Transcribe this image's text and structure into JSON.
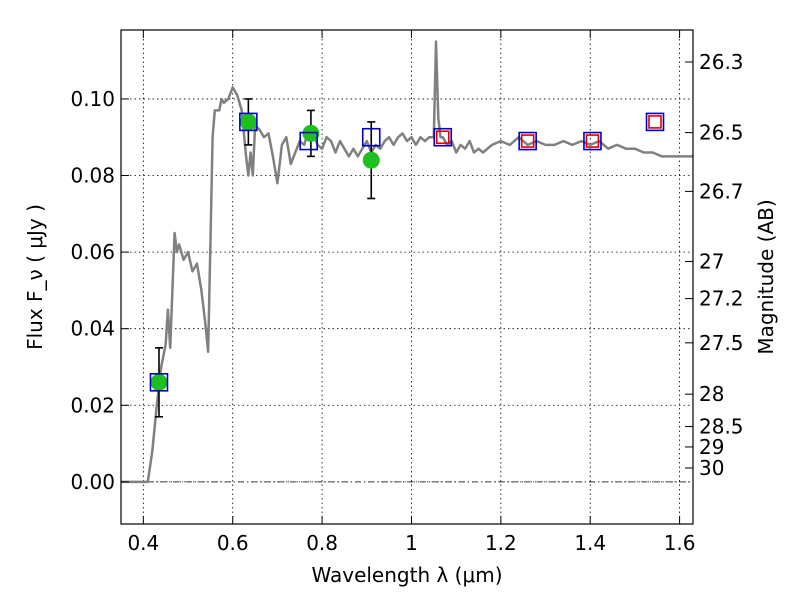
{
  "chart_data": {
    "type": "scatter",
    "xlabel": "Wavelength  λ (μm)",
    "ylabel": "Flux  F_ν  ( μJy )",
    "y2label": "Magnitude (AB)",
    "xlim": [
      0.35,
      1.63
    ],
    "ylim": [
      -0.011,
      0.118
    ],
    "grid": true,
    "x_ticks": [
      0.4,
      0.6,
      0.8,
      1,
      1.2,
      1.4,
      1.6
    ],
    "x_tick_labels": [
      "0.4",
      "0.6",
      "0.8",
      "1",
      "1.2",
      "1.4",
      "1.6"
    ],
    "y_ticks": [
      0.0,
      0.02,
      0.04,
      0.06,
      0.08,
      0.1
    ],
    "y_tick_labels": [
      "0.00",
      "0.02",
      "0.04",
      "0.06",
      "0.08",
      "0.10"
    ],
    "y2_ticks": [
      {
        "mag": 26.3,
        "label": "26.3"
      },
      {
        "mag": 26.5,
        "label": "26.5"
      },
      {
        "mag": 26.7,
        "label": "26.7"
      },
      {
        "mag": 27,
        "label": "27"
      },
      {
        "mag": 27.2,
        "label": "27.2"
      },
      {
        "mag": 27.5,
        "label": "27.5"
      },
      {
        "mag": 28,
        "label": "28"
      },
      {
        "mag": 28.5,
        "label": "28.5"
      },
      {
        "mag": 29,
        "label": "29"
      },
      {
        "mag": 30,
        "label": "30"
      }
    ],
    "series": [
      {
        "kind": "line",
        "color": "#808080",
        "x": [
          0.35,
          0.4,
          0.41,
          0.42,
          0.43,
          0.44,
          0.445,
          0.45,
          0.455,
          0.46,
          0.465,
          0.47,
          0.475,
          0.48,
          0.49,
          0.5,
          0.51,
          0.52,
          0.53,
          0.535,
          0.54,
          0.545,
          0.55,
          0.555,
          0.56,
          0.57,
          0.575,
          0.58,
          0.59,
          0.6,
          0.61,
          0.62,
          0.63,
          0.635,
          0.64,
          0.645,
          0.65,
          0.66,
          0.67,
          0.68,
          0.69,
          0.7,
          0.71,
          0.72,
          0.73,
          0.74,
          0.75,
          0.76,
          0.77,
          0.78,
          0.79,
          0.8,
          0.81,
          0.82,
          0.83,
          0.84,
          0.85,
          0.86,
          0.87,
          0.88,
          0.89,
          0.9,
          0.91,
          0.92,
          0.93,
          0.94,
          0.95,
          0.96,
          0.97,
          0.98,
          0.99,
          1.0,
          1.01,
          1.02,
          1.03,
          1.04,
          1.05,
          1.055,
          1.06,
          1.065,
          1.07,
          1.08,
          1.09,
          1.1,
          1.11,
          1.12,
          1.13,
          1.14,
          1.15,
          1.16,
          1.18,
          1.2,
          1.22,
          1.24,
          1.26,
          1.28,
          1.3,
          1.32,
          1.34,
          1.36,
          1.38,
          1.4,
          1.42,
          1.44,
          1.46,
          1.48,
          1.5,
          1.52,
          1.54,
          1.56,
          1.58,
          1.6,
          1.63
        ],
        "values": [
          0.0,
          0.0,
          0.0,
          0.008,
          0.02,
          0.03,
          0.033,
          0.036,
          0.045,
          0.035,
          0.05,
          0.065,
          0.06,
          0.062,
          0.058,
          0.06,
          0.055,
          0.057,
          0.05,
          0.045,
          0.04,
          0.034,
          0.062,
          0.09,
          0.097,
          0.097,
          0.1,
          0.099,
          0.1,
          0.103,
          0.101,
          0.097,
          0.085,
          0.08,
          0.086,
          0.08,
          0.093,
          0.092,
          0.09,
          0.091,
          0.085,
          0.078,
          0.088,
          0.09,
          0.083,
          0.086,
          0.089,
          0.088,
          0.092,
          0.091,
          0.088,
          0.087,
          0.09,
          0.089,
          0.086,
          0.089,
          0.087,
          0.085,
          0.087,
          0.085,
          0.087,
          0.089,
          0.086,
          0.088,
          0.087,
          0.089,
          0.09,
          0.088,
          0.09,
          0.091,
          0.089,
          0.09,
          0.088,
          0.09,
          0.089,
          0.09,
          0.09,
          0.115,
          0.095,
          0.09,
          0.09,
          0.088,
          0.089,
          0.086,
          0.088,
          0.087,
          0.089,
          0.086,
          0.087,
          0.086,
          0.088,
          0.089,
          0.088,
          0.09,
          0.088,
          0.089,
          0.088,
          0.088,
          0.089,
          0.088,
          0.089,
          0.088,
          0.089,
          0.087,
          0.088,
          0.087,
          0.087,
          0.086,
          0.086,
          0.085,
          0.085,
          0.085,
          0.085
        ]
      },
      {
        "kind": "points",
        "marker": "circle",
        "color": "#1fbf1f",
        "x": [
          0.435,
          0.635,
          0.775,
          0.91
        ],
        "values": [
          0.026,
          0.094,
          0.091,
          0.084
        ],
        "yerr": [
          0.009,
          0.006,
          0.006,
          0.01
        ]
      },
      {
        "kind": "points",
        "marker": "square",
        "color": "#0000cc",
        "x": [
          0.435,
          0.635,
          0.77,
          0.91,
          1.07,
          1.26,
          1.405,
          1.545
        ],
        "values": [
          0.026,
          0.094,
          0.089,
          0.09,
          0.09,
          0.089,
          0.089,
          0.094
        ]
      },
      {
        "kind": "points",
        "marker": "square",
        "color": "#dd0000",
        "x": [
          1.07,
          1.26,
          1.405,
          1.545
        ],
        "values": [
          0.09,
          0.089,
          0.089,
          0.094
        ]
      }
    ]
  }
}
